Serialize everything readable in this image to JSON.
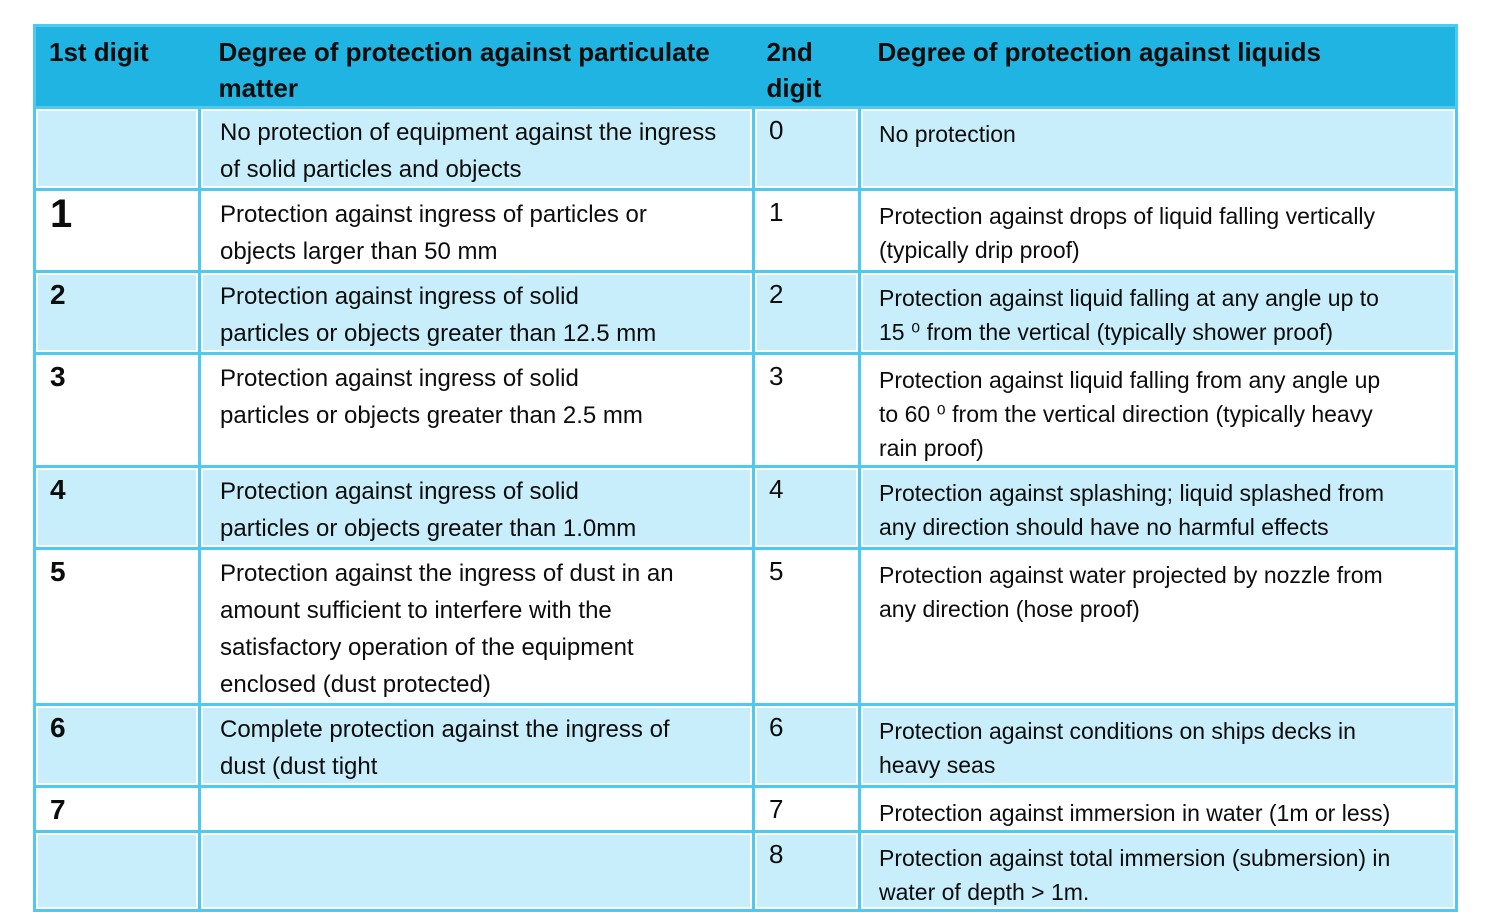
{
  "colors": {
    "header_bg": "#1FB4E1",
    "row_alt_bg": "#C9EEFB",
    "row_bg": "#FFFFFF",
    "grid": "#4FC9EE",
    "text": "#0C0C0C"
  },
  "table": {
    "headers": {
      "first_digit": "1st digit",
      "particulate": "Degree of protection against particulate\nmatter",
      "second_digit": "2nd\ndigit",
      "liquids": "Degree of protection against liquids"
    },
    "rows": [
      {
        "d1": "",
        "particulate": "No protection of equipment against the ingress\nof solid particles and objects",
        "d2": "0",
        "liquids": "No protection"
      },
      {
        "d1": "1",
        "particulate": "Protection against ingress of particles or\nobjects larger than 50 mm",
        "d2": "1",
        "liquids": "Protection against drops of liquid falling vertically\n(typically drip proof)"
      },
      {
        "d1": "2",
        "particulate": "Protection against ingress of solid\nparticles or objects greater than 12.5 mm",
        "d2": "2",
        "liquids": "Protection against liquid falling at any angle up to\n15 ⁰ from the vertical (typically shower proof)"
      },
      {
        "d1": "3",
        "particulate": "Protection against ingress of solid\nparticles or objects greater than 2.5 mm",
        "d2": "3",
        "liquids": "Protection against liquid falling from any angle up\nto 60 ⁰ from the vertical direction (typically heavy\nrain proof)"
      },
      {
        "d1": "4",
        "particulate": "Protection against ingress of solid\nparticles or objects greater than 1.0mm",
        "d2": "4",
        "liquids": "Protection against splashing; liquid splashed from\nany direction should have no harmful effects"
      },
      {
        "d1": "5",
        "particulate": "Protection against the ingress of dust in an\namount sufficient to interfere with the\nsatisfactory operation of the equipment\nenclosed (dust protected)",
        "d2": "5",
        "liquids": "Protection against water projected by nozzle from\nany direction (hose proof)"
      },
      {
        "d1": "6",
        "particulate": "Complete protection against the ingress of\ndust (dust tight",
        "d2": "6",
        "liquids": "Protection against conditions on ships decks in\nheavy seas"
      },
      {
        "d1": "7",
        "particulate": "",
        "d2": "7",
        "liquids": "Protection against immersion in water (1m or less)"
      },
      {
        "d1": "",
        "particulate": "",
        "d2": "8",
        "liquids": "Protection against total immersion (submersion) in\nwater of depth > 1m."
      }
    ]
  }
}
